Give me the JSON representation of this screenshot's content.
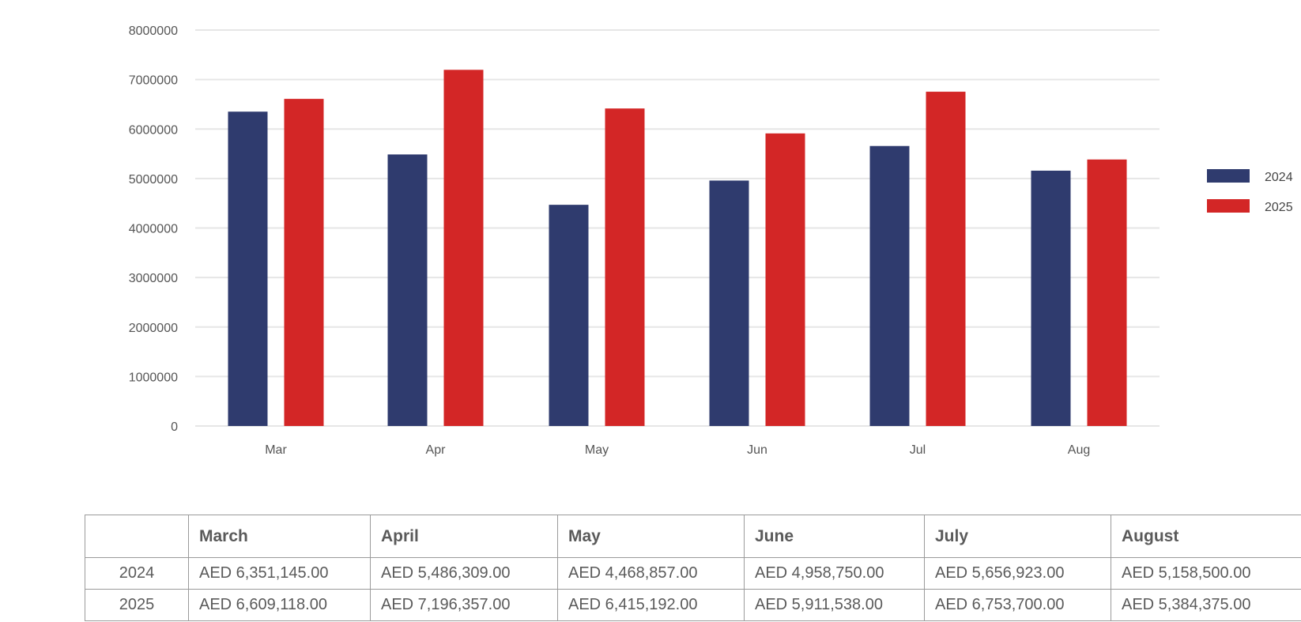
{
  "chart_data": {
    "type": "bar",
    "categories": [
      "Mar",
      "Apr",
      "May",
      "Jun",
      "Jul",
      "Aug"
    ],
    "series": [
      {
        "name": "2024",
        "color": "#2f3b6e",
        "values": [
          6351145,
          5486309,
          4468857,
          4958750,
          5656923,
          5158500
        ]
      },
      {
        "name": "2025",
        "color": "#d32626",
        "values": [
          6609118,
          7196357,
          6415192,
          5911538,
          6753700,
          5384375
        ]
      }
    ],
    "title": "",
    "xlabel": "",
    "ylabel": "",
    "ylim": [
      0,
      8000000
    ],
    "yticks": [
      "0",
      "1000000",
      "2000000",
      "3000000",
      "4000000",
      "5000000",
      "6000000",
      "7000000",
      "8000000"
    ],
    "grid": true,
    "legend": "right"
  },
  "table": {
    "headers": [
      "",
      "March",
      "April",
      "May",
      "June",
      "July",
      "August"
    ],
    "rows": [
      {
        "year": "2024",
        "cells": [
          "AED 6,351,145.00",
          "AED 5,486,309.00",
          "AED 4,468,857.00",
          "AED 4,958,750.00",
          "AED 5,656,923.00",
          "AED 5,158,500.00"
        ]
      },
      {
        "year": "2025",
        "cells": [
          "AED 6,609,118.00",
          "AED 7,196,357.00",
          "AED 6,415,192.00",
          "AED 5,911,538.00",
          "AED 6,753,700.00",
          "AED 5,384,375.00"
        ]
      }
    ]
  }
}
